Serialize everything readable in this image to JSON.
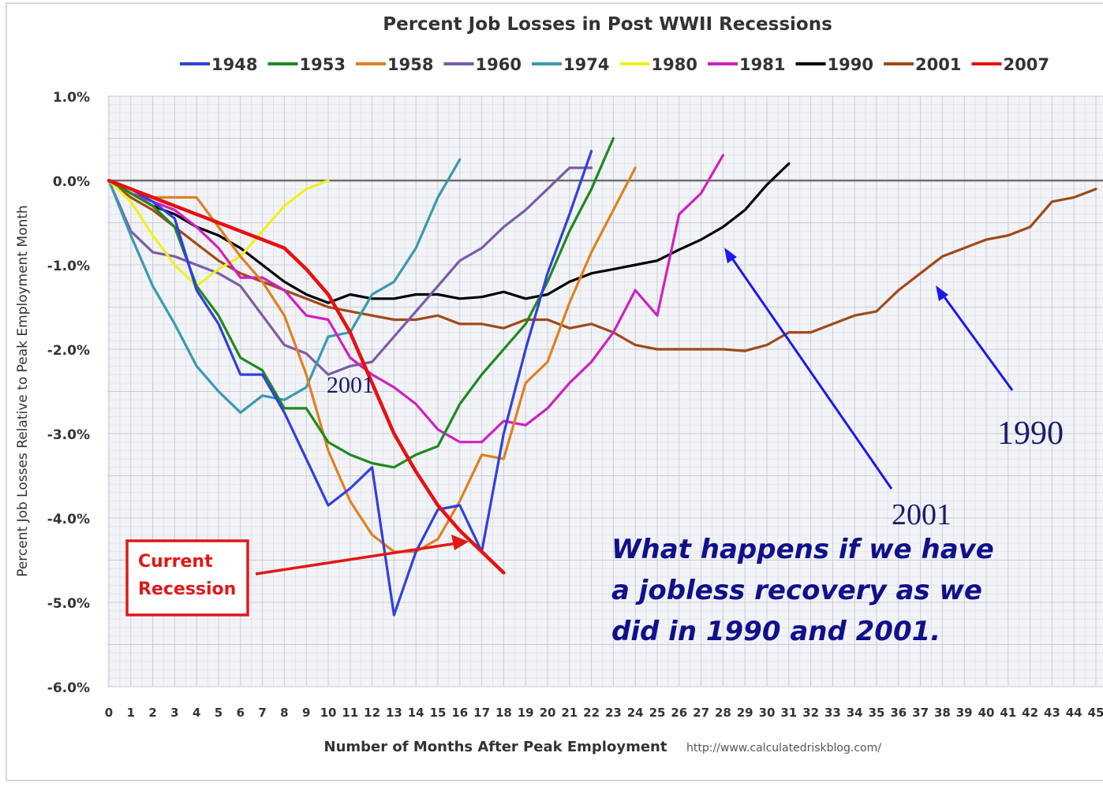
{
  "chart_data": {
    "type": "line",
    "title": "Percent Job Losses in Post WWII Recessions",
    "xlabel": "Number of Months After Peak Employment",
    "ylabel": "Percent Job Losses Relative to Peak Employment Month",
    "source": "http://www.calculatedriskblog.com/",
    "xlim": [
      0,
      45
    ],
    "ylim": [
      -6.0,
      1.0
    ],
    "x_ticks": [
      "0",
      "1",
      "2",
      "3",
      "4",
      "5",
      "6",
      "7",
      "8",
      "9",
      "10",
      "11",
      "12",
      "13",
      "14",
      "15",
      "16",
      "17",
      "18",
      "19",
      "20",
      "21",
      "22",
      "23",
      "24",
      "25",
      "26",
      "27",
      "28",
      "29",
      "30",
      "31",
      "32",
      "33",
      "34",
      "35",
      "36",
      "37",
      "38",
      "39",
      "40",
      "41",
      "42",
      "43",
      "44",
      "45"
    ],
    "y_ticks": [
      {
        "value": 1.0,
        "label": "1.0%"
      },
      {
        "value": 0.0,
        "label": "0.0%"
      },
      {
        "value": -1.0,
        "label": "-1.0%"
      },
      {
        "value": -2.0,
        "label": "-2.0%"
      },
      {
        "value": -3.0,
        "label": "-3.0%"
      },
      {
        "value": -4.0,
        "label": "-4.0%"
      },
      {
        "value": -5.0,
        "label": "-5.0%"
      },
      {
        "value": -6.0,
        "label": "-6.0%"
      }
    ],
    "grid": true,
    "legend_position": "top",
    "series": [
      {
        "name": "1948",
        "color": "#3040e0",
        "values": [
          0,
          -0.1,
          -0.25,
          -0.45,
          -1.3,
          -1.7,
          -2.3,
          -2.3,
          -2.75,
          -3.3,
          -3.85,
          -3.65,
          -3.4,
          -5.15,
          -4.4,
          -3.9,
          -3.85,
          -4.4,
          -3.0,
          -2.0,
          -1.1,
          -0.4,
          0.35
        ]
      },
      {
        "name": "1953",
        "color": "#1e8a1e",
        "values": [
          0,
          -0.15,
          -0.3,
          -0.55,
          -1.25,
          -1.6,
          -2.1,
          -2.25,
          -2.7,
          -2.7,
          -3.1,
          -3.25,
          -3.35,
          -3.4,
          -3.25,
          -3.15,
          -2.65,
          -2.3,
          -2.0,
          -1.7,
          -1.2,
          -0.6,
          -0.1,
          0.5
        ]
      },
      {
        "name": "1958",
        "color": "#e08020",
        "values": [
          0,
          -0.1,
          -0.2,
          -0.2,
          -0.2,
          -0.55,
          -0.9,
          -1.2,
          -1.6,
          -2.3,
          -3.2,
          -3.8,
          -4.2,
          -4.4,
          -4.4,
          -4.25,
          -3.8,
          -3.25,
          -3.3,
          -2.4,
          -2.15,
          -1.45,
          -0.85,
          -0.35,
          0.15
        ]
      },
      {
        "name": "1960",
        "color": "#7a5ca8",
        "values": [
          0,
          -0.6,
          -0.85,
          -0.9,
          -1.0,
          -1.1,
          -1.25,
          -1.6,
          -1.95,
          -2.05,
          -2.3,
          -2.2,
          -2.15,
          -1.85,
          -1.55,
          -1.25,
          -0.95,
          -0.8,
          -0.55,
          -0.35,
          -0.1,
          0.15,
          0.15
        ]
      },
      {
        "name": "1974",
        "color": "#3a9ab0",
        "values": [
          0,
          -0.65,
          -1.25,
          -1.7,
          -2.2,
          -2.5,
          -2.75,
          -2.55,
          -2.6,
          -2.45,
          -1.85,
          -1.8,
          -1.35,
          -1.2,
          -0.8,
          -0.2,
          0.25
        ]
      },
      {
        "name": "1980",
        "color": "#f0f020",
        "values": [
          0,
          -0.25,
          -0.65,
          -1.0,
          -1.25,
          -1.05,
          -0.9,
          -0.6,
          -0.3,
          -0.1,
          0.0
        ]
      },
      {
        "name": "1981",
        "color": "#d020c0",
        "values": [
          0,
          -0.15,
          -0.25,
          -0.35,
          -0.55,
          -0.8,
          -1.15,
          -1.15,
          -1.3,
          -1.6,
          -1.65,
          -2.1,
          -2.3,
          -2.45,
          -2.65,
          -2.95,
          -3.1,
          -3.1,
          -2.85,
          -2.9,
          -2.7,
          -2.4,
          -2.15,
          -1.8,
          -1.3,
          -1.6,
          -0.4,
          -0.15,
          0.3
        ]
      },
      {
        "name": "1990",
        "color": "#000000",
        "values": [
          0,
          -0.15,
          -0.3,
          -0.4,
          -0.55,
          -0.65,
          -0.8,
          -1.0,
          -1.2,
          -1.35,
          -1.45,
          -1.35,
          -1.4,
          -1.4,
          -1.35,
          -1.35,
          -1.4,
          -1.38,
          -1.32,
          -1.4,
          -1.35,
          -1.2,
          -1.1,
          -1.05,
          -1.0,
          -0.95,
          -0.82,
          -0.7,
          -0.55,
          -0.35,
          -0.05,
          0.2
        ]
      },
      {
        "name": "2001",
        "color": "#a04a18",
        "values": [
          0,
          -0.2,
          -0.35,
          -0.55,
          -0.75,
          -0.95,
          -1.1,
          -1.2,
          -1.3,
          -1.4,
          -1.5,
          -1.55,
          -1.6,
          -1.65,
          -1.65,
          -1.6,
          -1.7,
          -1.7,
          -1.75,
          -1.65,
          -1.65,
          -1.75,
          -1.7,
          -1.8,
          -1.95,
          -2.0,
          -2.0,
          -2.0,
          -2.0,
          -2.02,
          -1.95,
          -1.8,
          -1.8,
          -1.7,
          -1.6,
          -1.55,
          -1.3,
          -1.1,
          -0.9,
          -0.8,
          -0.7,
          -0.65,
          -0.55,
          -0.25,
          -0.2,
          -0.1
        ]
      },
      {
        "name": "2007",
        "color": "#e81010",
        "values": [
          0,
          -0.1,
          -0.2,
          -0.3,
          -0.4,
          -0.5,
          -0.6,
          -0.7,
          -0.8,
          -1.05,
          -1.35,
          -1.8,
          -2.4,
          -3.0,
          -3.45,
          -3.85,
          -4.15,
          -4.4,
          -4.65
        ]
      }
    ],
    "annotations": [
      {
        "text": "2001",
        "x": 11.1,
        "y": -2.48
      },
      {
        "text": "2001",
        "x": 37.6,
        "y": -3.95
      },
      {
        "text": "1990",
        "x": 42.5,
        "y": -2.95
      },
      {
        "text": "Current",
        "x": 1.4,
        "y": -4.52
      },
      {
        "text": "Recession",
        "x": 1.4,
        "y": -4.85
      },
      {
        "text": "What happens if we have",
        "x": 22.8,
        "y": -4.38
      },
      {
        "text": "a jobless  recovery as we",
        "x": 22.8,
        "y": -4.87
      },
      {
        "text": "did in 1990 and 2001.",
        "x": 22.8,
        "y": -5.36
      }
    ]
  }
}
